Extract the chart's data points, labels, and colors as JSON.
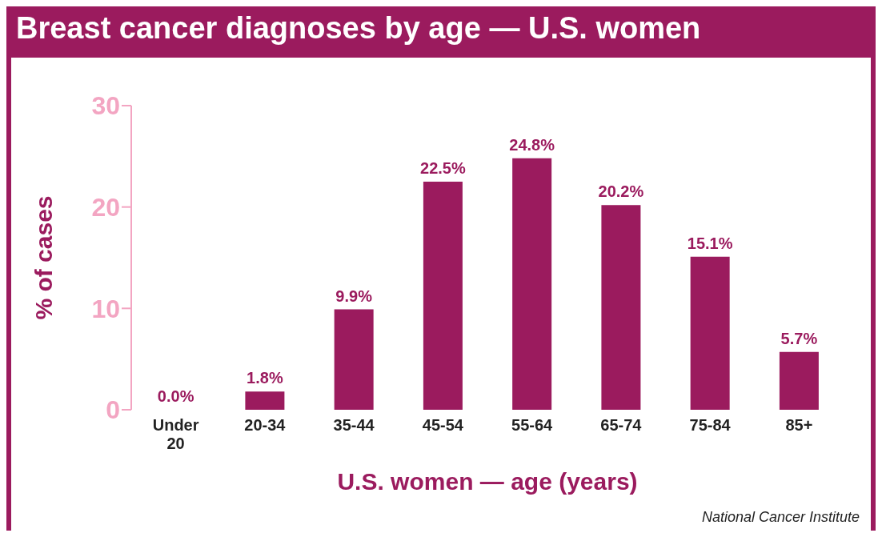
{
  "chart_data": {
    "type": "bar",
    "title": "Breast cancer diagnoses by age — U.S. women",
    "xlabel": "U.S. women — age (years)",
    "ylabel": "% of cases",
    "categories": [
      "Under 20",
      "20-34",
      "35-44",
      "45-54",
      "55-64",
      "65-74",
      "75-84",
      "85+"
    ],
    "values": [
      0.0,
      1.8,
      9.9,
      22.5,
      24.8,
      20.2,
      15.1,
      5.7
    ],
    "value_labels": [
      "0.0%",
      "1.8%",
      "9.9%",
      "22.5%",
      "24.8%",
      "20.2%",
      "15.1%",
      "5.7%"
    ],
    "color": "#9b1b5e",
    "ylim": [
      0,
      30
    ],
    "yticks": [
      0,
      10,
      20,
      30
    ],
    "grid": false,
    "annotations": [
      "National Cancer Institute"
    ]
  }
}
